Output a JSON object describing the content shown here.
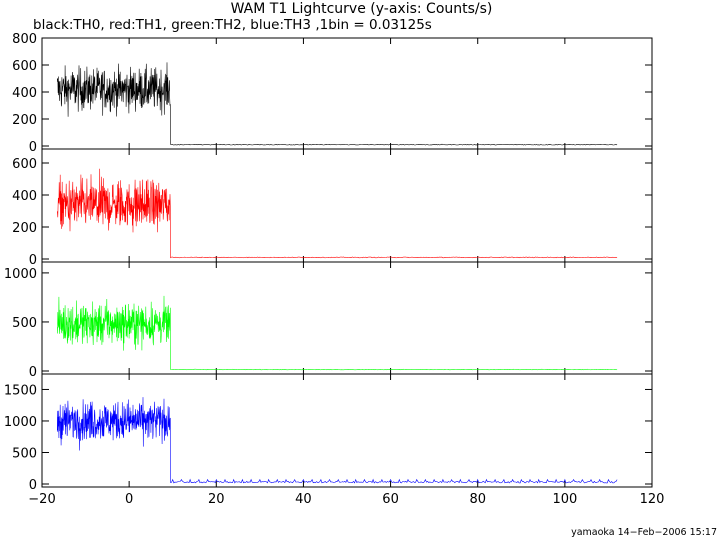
{
  "chart_data": {
    "type": "line",
    "title": "WAM T1 Lightcurve (y-axis: Counts/s)",
    "subtitle": "black:TH0, red:TH1, green:TH2, blue:TH3 ,1bin = 0.03125s",
    "xlabel": "",
    "ylabel": "",
    "xlim": [
      -20,
      120
    ],
    "x_ticks": [
      -20,
      0,
      20,
      40,
      60,
      80,
      100,
      120
    ],
    "x_tick_labels": [
      "−20",
      "0",
      "20",
      "40",
      "60",
      "80",
      "100",
      "120"
    ],
    "grid": false,
    "panels": [
      {
        "series_name": "TH0",
        "color": "#000000",
        "ylim": [
          0,
          800
        ],
        "y_ticks": [
          0,
          200,
          400,
          600,
          800
        ],
        "y_tick_labels": [
          "0",
          "200",
          "400",
          "600",
          "800"
        ],
        "active_x_range": [
          -16.5,
          9.5
        ],
        "active_mean": 420,
        "active_spread": 140,
        "quiet_x_range": [
          9.5,
          112
        ],
        "quiet_level": 10,
        "quiet_spread": 6
      },
      {
        "series_name": "TH1",
        "color": "#ff0000",
        "ylim": [
          0,
          650
        ],
        "y_ticks": [
          0,
          200,
          400,
          600
        ],
        "y_tick_labels": [
          "0",
          "200",
          "400",
          "600"
        ],
        "active_x_range": [
          -16.5,
          9.5
        ],
        "active_mean": 340,
        "active_spread": 140,
        "quiet_x_range": [
          9.5,
          112
        ],
        "quiet_level": 10,
        "quiet_spread": 5
      },
      {
        "series_name": "TH2",
        "color": "#00ff00",
        "ylim": [
          0,
          1050
        ],
        "y_ticks": [
          0,
          500,
          1000
        ],
        "y_tick_labels": [
          "0",
          "500",
          "1000"
        ],
        "active_x_range": [
          -16.5,
          9.5
        ],
        "active_mean": 480,
        "active_spread": 190,
        "quiet_x_range": [
          9.5,
          112
        ],
        "quiet_level": 15,
        "quiet_spread": 6
      },
      {
        "series_name": "TH3",
        "color": "#0000ff",
        "ylim": [
          0,
          1650
        ],
        "y_ticks": [
          0,
          500,
          1000,
          1500
        ],
        "y_tick_labels": [
          "0",
          "500",
          "1000",
          "1500"
        ],
        "active_x_range": [
          -16.5,
          9.5
        ],
        "active_mean": 1000,
        "active_spread": 280,
        "quiet_x_range": [
          9.5,
          112
        ],
        "quiet_level": 30,
        "quiet_spread": 25
      }
    ]
  },
  "footer": "yamaoka 14−Feb−2006 15:17"
}
